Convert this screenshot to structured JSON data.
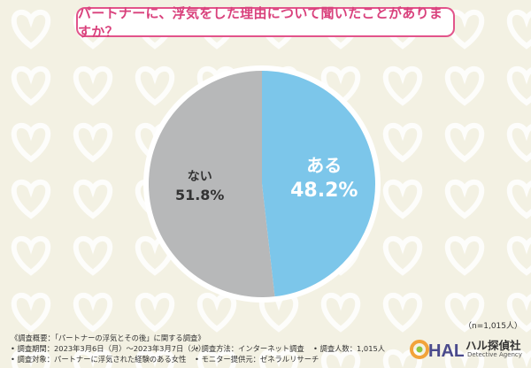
{
  "title": "パートナーに、浮気をした理由について聞いたことがありますか？",
  "chart_data": {
    "type": "pie",
    "categories": [
      "ある",
      "ない"
    ],
    "values": [
      48.2,
      51.8
    ],
    "value_labels": [
      "48.2%",
      "51.8%"
    ],
    "colors": [
      "#7cc6ea",
      "#b7b8b9"
    ],
    "label_colors": [
      "#ffffff",
      "#333333"
    ]
  },
  "sample_note": "（n=1,015人）",
  "footer": {
    "survey_overview": "《調査概要：「パートナーの浮気とその後」に関する調査》",
    "period": "• 調査期間：2023年3月6日（月）～2023年3月7日（火）",
    "target": "• 調査対象：パートナーに浮気された経験のある女性",
    "method": "• 調査方法：インターネット調査",
    "provider": "• モニター提供元：ゼネラルリサーチ",
    "count": "• 調査人数：1,015人"
  },
  "logo": {
    "mark_text": "HAL",
    "name": "ハル探偵社",
    "sub": "Detective Agency"
  }
}
